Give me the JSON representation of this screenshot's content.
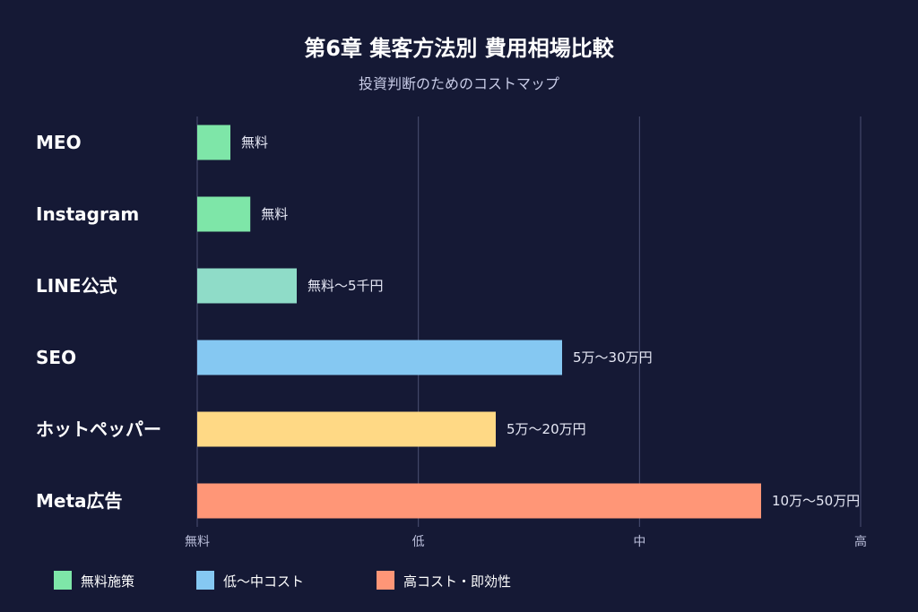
{
  "chart_data": {
    "type": "bar",
    "orientation": "horizontal",
    "title": "第6章 集客方法別 費用相場比較",
    "subtitle": "投資判断のためのコストマップ",
    "categories": [
      "MEO",
      "Instagram",
      "LINE公式",
      "SEO",
      "ホットペッパー",
      "Meta広告"
    ],
    "values": [
      0.15,
      0.24,
      0.45,
      1.65,
      1.35,
      2.55
    ],
    "data_labels": [
      "無料",
      "無料",
      "無料〜5千円",
      "5万〜30万円",
      "5万〜20万円",
      "10万〜50万円"
    ],
    "bar_colors": [
      "#7ee6a8",
      "#7ee6a8",
      "#8fdcc8",
      "#85c8f2",
      "#ffd985",
      "#ff9677"
    ],
    "x_ticks": [
      "無料",
      "低",
      "中",
      "高"
    ],
    "xlim": [
      0,
      3
    ],
    "grid": "vertical",
    "legend_position": "bottom-left",
    "legend": [
      {
        "label": "無料施策",
        "color": "#7ee6a8"
      },
      {
        "label": "低〜中コスト",
        "color": "#85c8f2"
      },
      {
        "label": "高コスト・即効性",
        "color": "#ff9677"
      }
    ]
  },
  "colors": {
    "background": "#151935",
    "grid": "#4a4f72",
    "tick_text": "#b8bcd8"
  }
}
